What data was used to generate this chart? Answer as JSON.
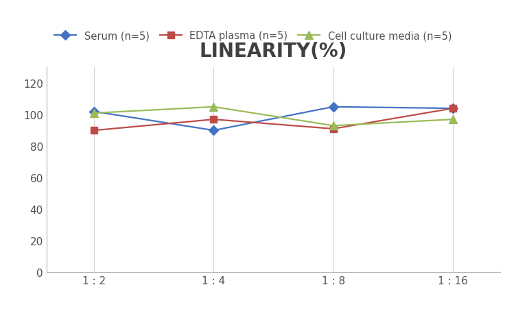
{
  "title": "LINEARITY(%)",
  "title_fontsize": 20,
  "title_color": "#404040",
  "x_labels": [
    "1 : 2",
    "1 : 4",
    "1 : 8",
    "1 : 16"
  ],
  "x_values": [
    0,
    1,
    2,
    3
  ],
  "series": [
    {
      "name": "Serum (n=5)",
      "values": [
        102,
        90,
        105,
        104
      ],
      "color": "#4472C4",
      "marker": "D",
      "marker_size": 7,
      "linewidth": 1.6
    },
    {
      "name": "EDTA plasma (n=5)",
      "values": [
        90,
        97,
        91,
        104
      ],
      "color": "#BE4B48",
      "marker": "s",
      "marker_size": 7,
      "linewidth": 1.6
    },
    {
      "name": "Cell culture media (n=5)",
      "values": [
        101,
        105,
        93,
        97
      ],
      "color": "#9BBB59",
      "marker": "^",
      "marker_size": 8,
      "linewidth": 1.6
    }
  ],
  "ylim": [
    0,
    130
  ],
  "yticks": [
    0,
    20,
    40,
    60,
    80,
    100,
    120
  ],
  "background_color": "#ffffff",
  "grid_color": "#d3d3d3",
  "legend_fontsize": 10.5,
  "tick_fontsize": 11,
  "tick_color": "#505050",
  "spine_color": "#b0b0b0"
}
